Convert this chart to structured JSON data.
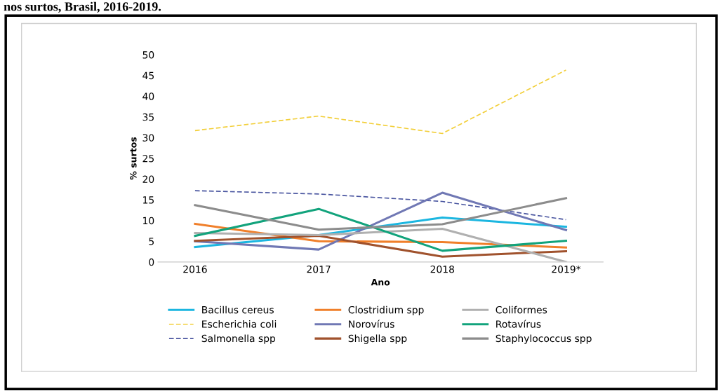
{
  "chart_data": {
    "type": "line",
    "title": "nos surtos, Brasil, 2016-2019.",
    "xlabel": "Ano",
    "ylabel": "% surtos",
    "categories": [
      "2016",
      "2017",
      "2018",
      "2019*"
    ],
    "ylim": [
      0,
      50
    ],
    "yticks": [
      0,
      5,
      10,
      15,
      20,
      25,
      30,
      35,
      40,
      45,
      50
    ],
    "grid": false,
    "legend": "bottom",
    "marker": "none",
    "series": [
      {
        "name": "Bacillus cereus",
        "color": "#1bb6e0",
        "values": [
          3.6,
          6.5,
          10.7,
          8.5
        ]
      },
      {
        "name": "Escherichia coli",
        "color": "#f2cf3a",
        "line_style": "dashed",
        "values": [
          31.7,
          35.2,
          31,
          46.3
        ]
      },
      {
        "name": "Salmonella spp",
        "color": "#4a56a0",
        "line_style": "dashed",
        "values": [
          17.2,
          16.4,
          14.6,
          10.2
        ]
      },
      {
        "name": "Clostridium spp",
        "color": "#f07f2a",
        "values": [
          9.2,
          5,
          4.8,
          3.5
        ]
      },
      {
        "name": "Norovírus",
        "color": "#7078b4",
        "values": [
          5,
          3,
          16.7,
          7.7
        ]
      },
      {
        "name": "Shigella spp",
        "color": "#a0522d",
        "values": [
          5.1,
          6.3,
          1.3,
          2.6
        ]
      },
      {
        "name": "Coliformes",
        "color": "#b0b0b0",
        "values": [
          7,
          6.5,
          8,
          0
        ]
      },
      {
        "name": "Rotavírus",
        "color": "#12a37c",
        "values": [
          6.3,
          12.8,
          2.7,
          5.1
        ]
      },
      {
        "name": "Staphylococcus spp",
        "color": "#8c8c8c",
        "values": [
          13.7,
          7.8,
          9.1,
          15.4
        ]
      }
    ]
  }
}
